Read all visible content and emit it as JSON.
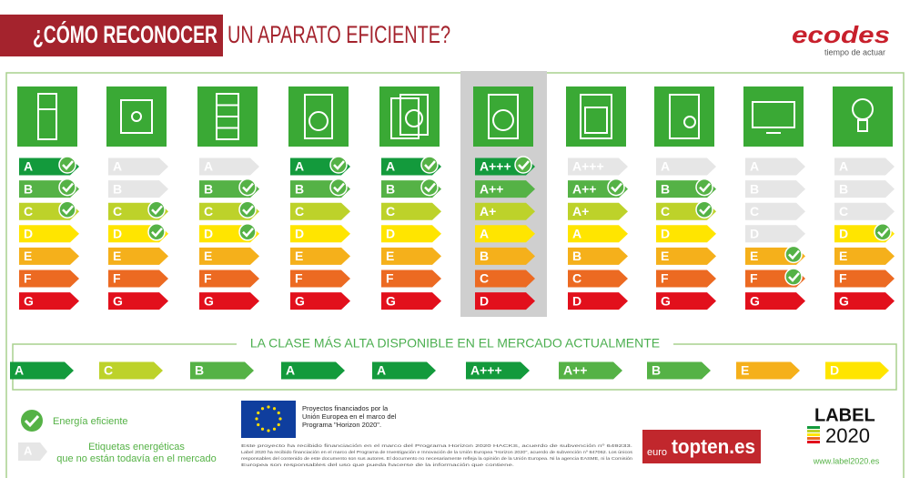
{
  "header": {
    "title_bold": "¿CÓMO RECONOCER",
    "title_light": "UN APARATO EFICIENTE?",
    "logo": "ecodes",
    "logo_tagline": "tiempo de actuar"
  },
  "class_colors": [
    "#139a3c",
    "#55b246",
    "#bdd22a",
    "#ffe500",
    "#f5b01b",
    "#ec6a22",
    "#e2101c"
  ],
  "columns": [
    {
      "rows": [
        {
          "label": "A",
          "available": true,
          "checked": true
        },
        {
          "label": "B",
          "available": true,
          "checked": true
        },
        {
          "label": "C",
          "available": true,
          "checked": true
        },
        {
          "label": "D",
          "available": true,
          "checked": false
        },
        {
          "label": "E",
          "available": true,
          "checked": false
        },
        {
          "label": "F",
          "available": true,
          "checked": false
        },
        {
          "label": "G",
          "available": true,
          "checked": false
        }
      ],
      "best": "A"
    },
    {
      "rows": [
        {
          "label": "A",
          "available": false,
          "checked": false
        },
        {
          "label": "B",
          "available": false,
          "checked": false
        },
        {
          "label": "C",
          "available": true,
          "checked": true
        },
        {
          "label": "D",
          "available": true,
          "checked": true
        },
        {
          "label": "E",
          "available": true,
          "checked": false
        },
        {
          "label": "F",
          "available": true,
          "checked": false
        },
        {
          "label": "G",
          "available": true,
          "checked": false
        }
      ],
      "best": "C"
    },
    {
      "rows": [
        {
          "label": "A",
          "available": false,
          "checked": false
        },
        {
          "label": "B",
          "available": true,
          "checked": true
        },
        {
          "label": "C",
          "available": true,
          "checked": true
        },
        {
          "label": "D",
          "available": true,
          "checked": true
        },
        {
          "label": "E",
          "available": true,
          "checked": false
        },
        {
          "label": "F",
          "available": true,
          "checked": false
        },
        {
          "label": "G",
          "available": true,
          "checked": false
        }
      ],
      "best": "B"
    },
    {
      "rows": [
        {
          "label": "A",
          "available": true,
          "checked": true
        },
        {
          "label": "B",
          "available": true,
          "checked": true
        },
        {
          "label": "C",
          "available": true,
          "checked": false
        },
        {
          "label": "D",
          "available": true,
          "checked": false
        },
        {
          "label": "E",
          "available": true,
          "checked": false
        },
        {
          "label": "F",
          "available": true,
          "checked": false
        },
        {
          "label": "G",
          "available": true,
          "checked": false
        }
      ],
      "best": "A"
    },
    {
      "rows": [
        {
          "label": "A",
          "available": true,
          "checked": true
        },
        {
          "label": "B",
          "available": true,
          "checked": true
        },
        {
          "label": "C",
          "available": true,
          "checked": false
        },
        {
          "label": "D",
          "available": true,
          "checked": false
        },
        {
          "label": "E",
          "available": true,
          "checked": false
        },
        {
          "label": "F",
          "available": true,
          "checked": false
        },
        {
          "label": "G",
          "available": true,
          "checked": false
        }
      ],
      "best": "A"
    },
    {
      "highlighted": true,
      "rows": [
        {
          "label": "A+++",
          "available": true,
          "checked": true
        },
        {
          "label": "A++",
          "available": true,
          "checked": false
        },
        {
          "label": "A+",
          "available": true,
          "checked": false
        },
        {
          "label": "A",
          "available": true,
          "checked": false
        },
        {
          "label": "B",
          "available": true,
          "checked": false
        },
        {
          "label": "C",
          "available": true,
          "checked": false
        },
        {
          "label": "D",
          "available": true,
          "checked": false
        }
      ],
      "best": "A+++"
    },
    {
      "rows": [
        {
          "label": "A+++",
          "available": false,
          "checked": false
        },
        {
          "label": "A++",
          "available": true,
          "checked": true
        },
        {
          "label": "A+",
          "available": true,
          "checked": false
        },
        {
          "label": "A",
          "available": true,
          "checked": false
        },
        {
          "label": "B",
          "available": true,
          "checked": false
        },
        {
          "label": "C",
          "available": true,
          "checked": false
        },
        {
          "label": "D",
          "available": true,
          "checked": false
        }
      ],
      "best": "A++"
    },
    {
      "rows": [
        {
          "label": "A",
          "available": false,
          "checked": false
        },
        {
          "label": "B",
          "available": true,
          "checked": true
        },
        {
          "label": "C",
          "available": true,
          "checked": true
        },
        {
          "label": "D",
          "available": true,
          "checked": false
        },
        {
          "label": "E",
          "available": true,
          "checked": false
        },
        {
          "label": "F",
          "available": true,
          "checked": false
        },
        {
          "label": "G",
          "available": true,
          "checked": false
        }
      ],
      "best": "B"
    },
    {
      "rows": [
        {
          "label": "A",
          "available": false,
          "checked": false
        },
        {
          "label": "B",
          "available": false,
          "checked": false
        },
        {
          "label": "C",
          "available": false,
          "checked": false
        },
        {
          "label": "D",
          "available": false,
          "checked": false
        },
        {
          "label": "E",
          "available": true,
          "checked": true
        },
        {
          "label": "F",
          "available": true,
          "checked": true
        },
        {
          "label": "G",
          "available": true,
          "checked": false
        }
      ],
      "best": "E"
    },
    {
      "rows": [
        {
          "label": "A",
          "available": false,
          "checked": false
        },
        {
          "label": "B",
          "available": false,
          "checked": false
        },
        {
          "label": "C",
          "available": false,
          "checked": false
        },
        {
          "label": "D",
          "available": true,
          "checked": true
        },
        {
          "label": "E",
          "available": true,
          "checked": false
        },
        {
          "label": "F",
          "available": true,
          "checked": false
        },
        {
          "label": "G",
          "available": true,
          "checked": false
        }
      ],
      "best": "D"
    }
  ],
  "best_section": {
    "title": "LA CLASE MÁS ALTA DISPONIBLE EN EL MERCADO ACTUALMENTE"
  },
  "legend": {
    "checked": "Energía eficiente",
    "unavailable_sample": "A",
    "unavailable": [
      "Etiquetas energéticas",
      "que no están todavía en el mercado"
    ]
  },
  "funding": {
    "lines": [
      "Proyectos financiados por la",
      "Unión Europea en el marco del",
      "Programa \"Horizon 2020\"."
    ],
    "disclaimer": [
      "Este proyecto ha recibido financiación en el marco del Programa Horizon 2020 HACKS, acuerdo de subvención nº 649233.",
      "Label 2020 ha recibido financiación en el marco del Programa de Investigación e Innovación de la Unión Europea \"Horizon 2020\", acuerdo de subvención nº 847062. Los únicos",
      "responsables del contenido de este documento son sus autores. El documento no necesariamente refleja la opinión de la Unión Europea. Ni la agencia EASME, ni la Comisión",
      "Europea son responsables del uso que pueda hacerse de la información que contiene."
    ]
  },
  "topten": {
    "prefix": "euro",
    "name": "topten.es"
  },
  "label2020": {
    "word": "LABEL",
    "year": "2020",
    "url": "www.label2020.es"
  }
}
